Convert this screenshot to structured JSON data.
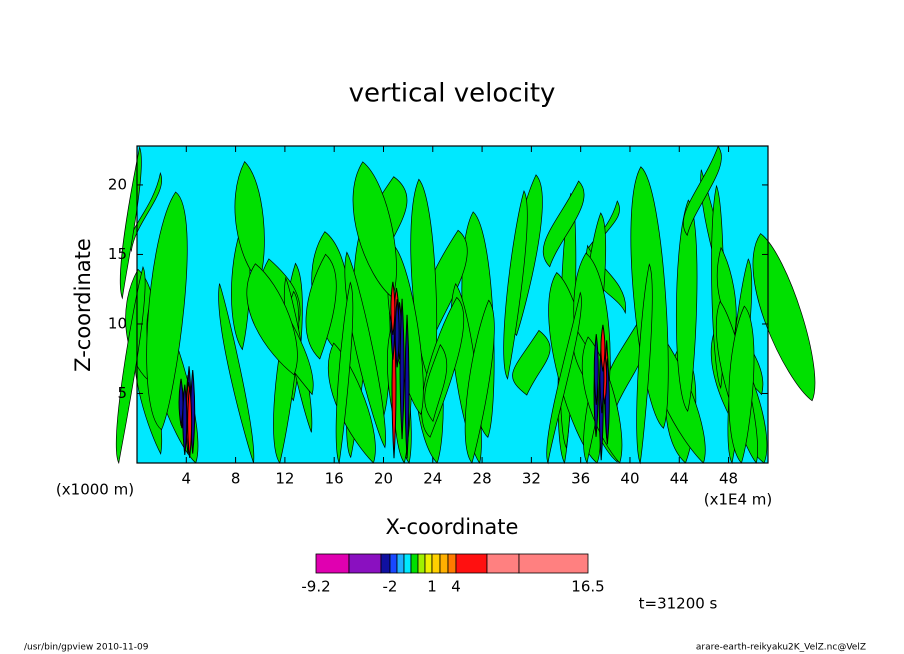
{
  "chart_data": {
    "type": "contour",
    "title": "vertical velocity",
    "x_label": "X-coordinate",
    "y_label": "Z-coordinate",
    "x_unit_left": "(x1000 m)",
    "x_unit_right": "(x1E4 m)",
    "xlim": [
      0,
      51.2
    ],
    "xticks": [
      4,
      8,
      12,
      16,
      20,
      24,
      28,
      32,
      36,
      40,
      44,
      48
    ],
    "ylim": [
      0,
      22.8
    ],
    "yticks": [
      5,
      10,
      15,
      20
    ],
    "colorbar": {
      "levels": [
        -9.2,
        -6,
        -3,
        -2,
        -1.5,
        -1,
        -0.5,
        0,
        0.5,
        1,
        2,
        3,
        4,
        8,
        12,
        16.5
      ],
      "colors": [
        "#e000b0",
        "#8a10c0",
        "#1010a0",
        "#1848ff",
        "#20b0ff",
        "#00e8ff",
        "#00e000",
        "#a0f000",
        "#f0f000",
        "#ffd000",
        "#ffb000",
        "#ff7a00",
        "#ff1010",
        "#ff8080",
        "#ff8080"
      ],
      "ticks": [
        -9.2,
        -2,
        1,
        4,
        16.5
      ]
    },
    "time_label": "t=31200 s",
    "footer_left": "/usr/bin/gpview  2010-11-09",
    "footer_right": "arare-earth-reikyaku2K_VelZ.nc@VelZ"
  }
}
